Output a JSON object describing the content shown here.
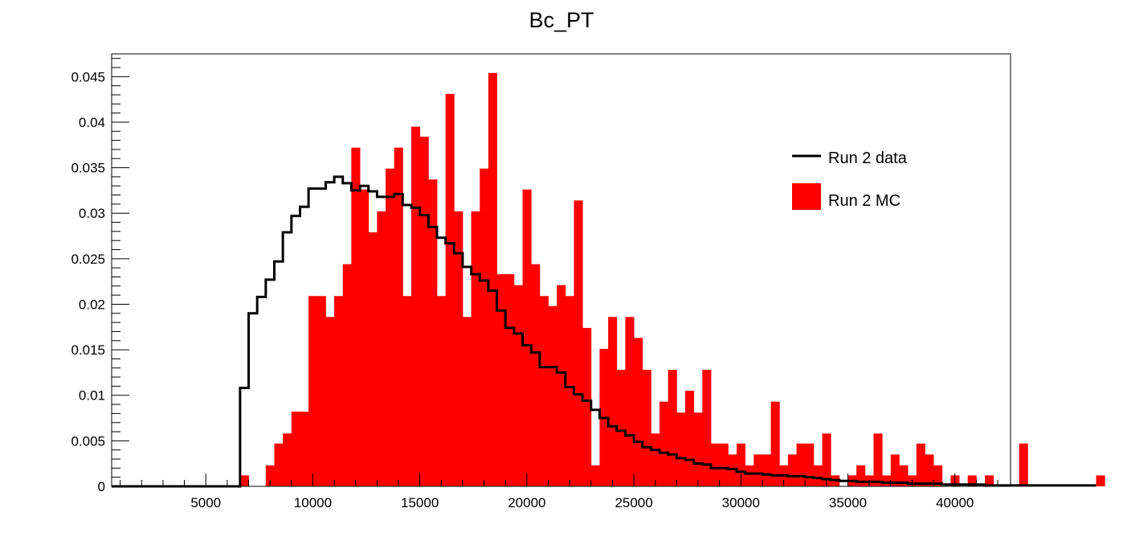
{
  "chart_data": {
    "type": "bar",
    "title": "Bc_PT",
    "xlabel": "",
    "ylabel": "",
    "xlim": [
      600,
      42600
    ],
    "ylim": [
      0,
      0.0475
    ],
    "bin_width": 400,
    "x_ticks": [
      5000,
      10000,
      15000,
      20000,
      25000,
      30000,
      35000,
      40000
    ],
    "x_tick_labels": [
      "5000",
      "10000",
      "15000",
      "20000",
      "25000",
      "30000",
      "35000",
      "40000"
    ],
    "y_ticks": [
      0,
      0.005,
      0.01,
      0.015,
      0.02,
      0.025,
      0.03,
      0.035,
      0.04,
      0.045
    ],
    "y_tick_labels": [
      "0",
      "0.005",
      "0.01",
      "0.015",
      "0.02",
      "0.025",
      "0.03",
      "0.035",
      "0.04",
      "0.045"
    ],
    "grid": false,
    "legend_position": "top-right",
    "legend": [
      {
        "name": "Run 2 data",
        "style": "line",
        "color": "#000000"
      },
      {
        "name": "Run 2 MC",
        "style": "fill",
        "color": "#ff0000"
      }
    ],
    "series": [
      {
        "name": "Run 2 MC",
        "type": "bar",
        "color": "#ff0000",
        "x_start": 600,
        "values": [
          0,
          0,
          0,
          0,
          0,
          0,
          0,
          0,
          0,
          0,
          0,
          0,
          0,
          0,
          0,
          0.0012,
          0,
          0,
          0.0023,
          0.0047,
          0.0058,
          0.0082,
          0.0082,
          0.0209,
          0.0209,
          0.0186,
          0.0209,
          0.0244,
          0.0372,
          0.0326,
          0.0279,
          0.0302,
          0.0349,
          0.0372,
          0.0209,
          0.0395,
          0.0384,
          0.0337,
          0.0209,
          0.0431,
          0.0302,
          0.0186,
          0.0302,
          0.0349,
          0.0454,
          0.0233,
          0.0233,
          0.0221,
          0.0326,
          0.0244,
          0.0209,
          0.0198,
          0.0221,
          0.0209,
          0.0314,
          0.0174,
          0.0023,
          0.0151,
          0.0186,
          0.0128,
          0.0186,
          0.0163,
          0.0128,
          0.0058,
          0.0093,
          0.0128,
          0.0081,
          0.0105,
          0.0081,
          0.0128,
          0.0047,
          0.0047,
          0.0035,
          0.0047,
          0.0023,
          0.0035,
          0.0035,
          0.0093,
          0.0023,
          0.0035,
          0.0047,
          0.0047,
          0.0023,
          0.0058,
          0.0012,
          0,
          0.0012,
          0.0023,
          0.0012,
          0.0058,
          0.0012,
          0.0035,
          0.0023,
          0.0012,
          0.0047,
          0.0035,
          0.0023,
          0,
          0.0012,
          0,
          0.0012,
          0,
          0.0012,
          0,
          0,
          0,
          0.0047,
          0,
          0,
          0,
          0,
          0,
          0,
          0,
          0,
          0.0012,
          0,
          0,
          0,
          0,
          0,
          0,
          0,
          0,
          0.0012,
          0,
          0,
          0,
          0,
          0,
          0,
          0,
          0,
          0
        ]
      },
      {
        "name": "Run 2 data",
        "type": "step",
        "color": "#000000",
        "x_start": 600,
        "values": [
          0,
          0,
          0,
          0,
          0,
          0,
          0,
          0,
          0,
          0,
          0,
          0,
          0,
          0,
          0,
          0.0108,
          0.019,
          0.0208,
          0.0227,
          0.0247,
          0.0279,
          0.0297,
          0.0307,
          0.0327,
          0.0327,
          0.0334,
          0.034,
          0.0333,
          0.0325,
          0.033,
          0.0324,
          0.0318,
          0.0318,
          0.0321,
          0.0309,
          0.0306,
          0.0298,
          0.0285,
          0.0273,
          0.0267,
          0.0256,
          0.0241,
          0.0233,
          0.0226,
          0.0215,
          0.0193,
          0.0174,
          0.0168,
          0.0155,
          0.0147,
          0.0131,
          0.0131,
          0.0125,
          0.0109,
          0.0101,
          0.0094,
          0.0084,
          0.0075,
          0.0066,
          0.0061,
          0.0056,
          0.0049,
          0.0043,
          0.004,
          0.0037,
          0.0035,
          0.0031,
          0.0029,
          0.0025,
          0.0024,
          0.002,
          0.002,
          0.0019,
          0.0016,
          0.0014,
          0.0014,
          0.0013,
          0.0012,
          0.0012,
          0.0011,
          0.0011,
          0.001,
          0.0009,
          0.0008,
          0.0007,
          0.0006,
          0.0006,
          0.0005,
          0.0005,
          0.0005,
          0.0004,
          0.0004,
          0.0004,
          0.0003,
          0.0003,
          0.0003,
          0.0003,
          0.0002,
          0.0002,
          0.0002,
          0.0002,
          0.0002,
          0.0001,
          0.0001,
          0.0001,
          0.0001,
          0.0001,
          0.0001,
          0.0001,
          0.0001,
          0.0001,
          0.0001,
          0.0001,
          0.0001,
          0.0001
        ]
      }
    ]
  }
}
